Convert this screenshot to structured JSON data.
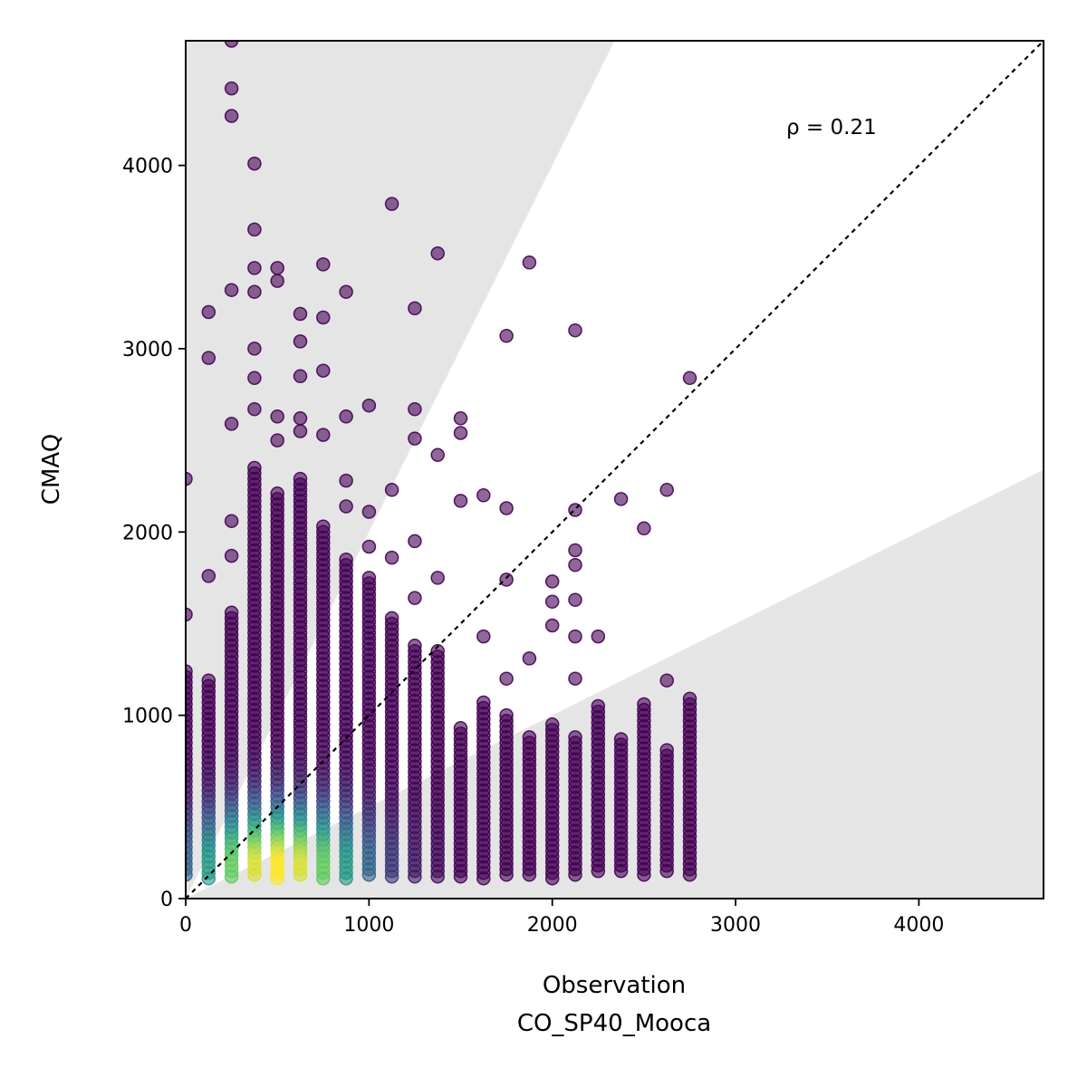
{
  "chart_data": {
    "type": "scatter",
    "xlabel": "Observation",
    "xlabel_station": "CO_SP40_Mooca",
    "ylabel": "CMAQ",
    "xlim": [
      0,
      4680
    ],
    "ylim": [
      0,
      4680
    ],
    "x_ticks": [
      0,
      1000,
      2000,
      3000,
      4000
    ],
    "y_ticks": [
      0,
      1000,
      2000,
      3000,
      4000
    ],
    "x_tick_labels": [
      "0",
      "1000",
      "2000",
      "3000",
      "4000"
    ],
    "y_tick_labels": [
      "0",
      "1000",
      "2000",
      "3000",
      "4000"
    ],
    "annotation": "ρ = 0.21",
    "reference_line": "1:1 dashed",
    "shaded_regions": "outside factor-of-2 band",
    "colormap": "viridis (point density)",
    "grid": false,
    "legend": "none",
    "columns": [
      {
        "x": 0,
        "min": 110,
        "max": 1240,
        "extras": [
          1550,
          2290
        ]
      },
      {
        "x": 125,
        "min": 110,
        "max": 1190,
        "extras": [
          1760,
          2950,
          3200
        ]
      },
      {
        "x": 250,
        "min": 110,
        "max": 1560,
        "extras": [
          1870,
          2060,
          2590,
          3320,
          4270,
          4420,
          4680
        ]
      },
      {
        "x": 375,
        "min": 110,
        "max": 2350,
        "extras": [
          2670,
          2840,
          3000,
          3310,
          3440,
          3650,
          4010
        ]
      },
      {
        "x": 500,
        "min": 110,
        "max": 2210,
        "extras": [
          2500,
          2630,
          3370,
          3440
        ]
      },
      {
        "x": 625,
        "min": 110,
        "max": 2290,
        "extras": [
          2550,
          2620,
          2850,
          3040,
          3190
        ]
      },
      {
        "x": 750,
        "min": 110,
        "max": 2030,
        "extras": [
          2530,
          2880,
          3170,
          3460
        ]
      },
      {
        "x": 875,
        "min": 110,
        "max": 1850,
        "extras": [
          2140,
          2280,
          2630,
          3310
        ]
      },
      {
        "x": 1000,
        "min": 110,
        "max": 1750,
        "extras": [
          1920,
          2110,
          2690
        ]
      },
      {
        "x": 1125,
        "min": 110,
        "max": 1530,
        "extras": [
          1860,
          2230,
          3790
        ]
      },
      {
        "x": 1250,
        "min": 110,
        "max": 1380,
        "extras": [
          1640,
          1950,
          2510,
          2670,
          3220
        ]
      },
      {
        "x": 1375,
        "min": 110,
        "max": 1350,
        "extras": [
          1750,
          2420,
          3520
        ]
      },
      {
        "x": 1500,
        "min": 110,
        "max": 930,
        "extras": [
          2170,
          2540,
          2620
        ]
      },
      {
        "x": 1625,
        "min": 110,
        "max": 1070,
        "extras": [
          1430,
          2200
        ]
      },
      {
        "x": 1750,
        "min": 110,
        "max": 1000,
        "extras": [
          1200,
          1740,
          2130,
          3070
        ]
      },
      {
        "x": 1875,
        "min": 110,
        "max": 880,
        "extras": [
          1310,
          3470
        ]
      },
      {
        "x": 2000,
        "min": 110,
        "max": 950,
        "extras": [
          1490,
          1620,
          1730
        ]
      },
      {
        "x": 2125,
        "min": 110,
        "max": 880,
        "extras": [
          1200,
          1430,
          1630,
          1820,
          1900,
          2120,
          3100
        ]
      },
      {
        "x": 2250,
        "min": 130,
        "max": 1050,
        "extras": [
          1430
        ]
      },
      {
        "x": 2375,
        "min": 130,
        "max": 870,
        "extras": [
          2180
        ]
      },
      {
        "x": 2500,
        "min": 130,
        "max": 1060,
        "extras": [
          2020
        ]
      },
      {
        "x": 2625,
        "min": 140,
        "max": 810,
        "extras": [
          1190,
          2230
        ]
      },
      {
        "x": 2750,
        "min": 130,
        "max": 1090,
        "extras": [
          2840
        ]
      }
    ]
  }
}
